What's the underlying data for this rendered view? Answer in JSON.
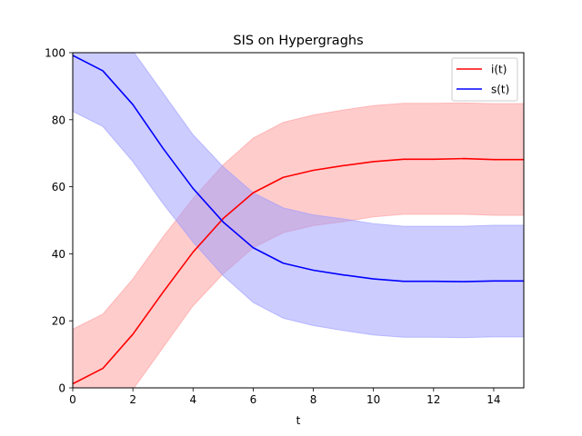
{
  "chart_data": {
    "type": "line",
    "title": "SIS on Hypergraghs",
    "xlabel": "t",
    "ylabel": "",
    "xlim": [
      0,
      15
    ],
    "ylim": [
      0,
      100
    ],
    "xticks": [
      0,
      2,
      4,
      6,
      8,
      10,
      12,
      14
    ],
    "yticks": [
      0,
      20,
      40,
      60,
      80,
      100
    ],
    "grid": false,
    "legend_position": "top-right",
    "x": [
      0,
      1,
      2,
      3,
      4,
      5,
      6,
      7,
      8,
      9,
      10,
      11,
      12,
      13,
      14,
      15
    ],
    "series": [
      {
        "name": "i(t)",
        "color": "#ff0000",
        "band_color": "#ff9999",
        "values": [
          1.2,
          5.8,
          16,
          28.5,
          40.5,
          50.5,
          58.2,
          62.8,
          64.9,
          66.3,
          67.5,
          68.2,
          68.2,
          68.4,
          68.1,
          68.1
        ],
        "lower": [
          -15,
          -10.5,
          -0.5,
          12,
          24.5,
          34,
          41.8,
          46.3,
          48.4,
          49.6,
          51,
          51.8,
          51.8,
          51.8,
          51.5,
          51.5
        ],
        "upper": [
          17.5,
          22,
          32.5,
          45,
          56.5,
          66.5,
          74.5,
          79.2,
          81.4,
          82.9,
          84.2,
          84.9,
          84.9,
          85,
          84.8,
          84.8
        ]
      },
      {
        "name": "s(t)",
        "color": "#0000ff",
        "band_color": "#9999ff",
        "values": [
          99.2,
          94.6,
          84.5,
          71.5,
          59.5,
          49.5,
          41.8,
          37.2,
          35.1,
          33.7,
          32.5,
          31.8,
          31.8,
          31.7,
          31.9,
          31.9
        ],
        "lower": [
          82.5,
          78,
          67.5,
          55,
          43.5,
          33.5,
          25.5,
          20.8,
          18.6,
          17.1,
          15.8,
          15.1,
          15.1,
          15,
          15.2,
          15.2
        ],
        "upper": [
          115,
          110.5,
          100.5,
          88,
          75.5,
          66,
          58.2,
          53.7,
          51.6,
          50.4,
          49,
          48.2,
          48.2,
          48.2,
          48.5,
          48.5
        ]
      }
    ]
  }
}
